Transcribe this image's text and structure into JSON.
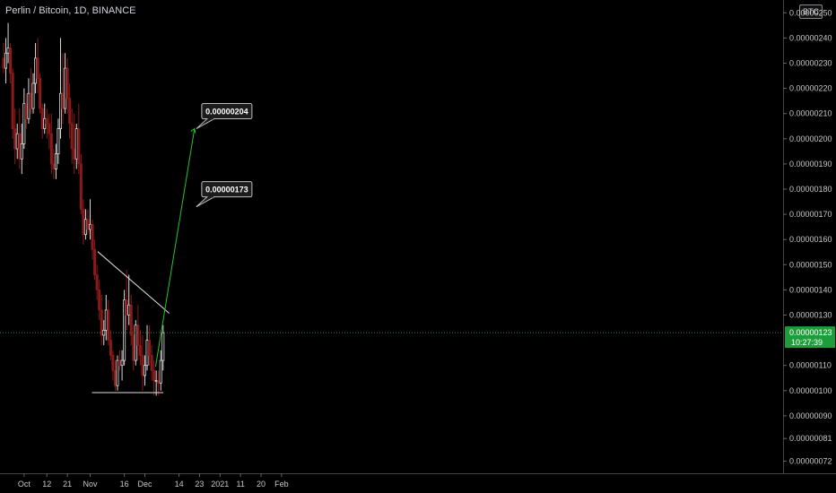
{
  "header": {
    "title": "Perlin / Bitcoin, 1D, BINANCE",
    "currency": "BTC"
  },
  "chart_data": {
    "type": "candlestick",
    "title": "Perlin / Bitcoin, 1D, BINANCE",
    "y_axis": {
      "ylim": [
        7e-07,
        2.5e-06
      ],
      "tick_labels": [
        "0.00000250",
        "0.00000240",
        "0.00000230",
        "0.00000220",
        "0.00000210",
        "0.00000200",
        "0.00000190",
        "0.00000180",
        "0.00000170",
        "0.00000160",
        "0.00000150",
        "0.00000140",
        "0.00000130",
        "0.00000110",
        "0.00000100",
        "0.00000090",
        "0.00000081",
        "0.00000072"
      ],
      "tick_values": [
        250,
        240,
        230,
        220,
        210,
        200,
        190,
        180,
        170,
        160,
        150,
        140,
        130,
        110,
        100,
        90,
        81,
        72
      ]
    },
    "x_axis": {
      "tick_labels": [
        "Oct",
        "12",
        "21",
        "Nov",
        "16",
        "Dec",
        "14",
        "23",
        "2021",
        "11",
        "20",
        "Feb"
      ],
      "tick_day_index": [
        9,
        19,
        28,
        38,
        53,
        62,
        77,
        86,
        95,
        104,
        113,
        122
      ]
    },
    "last_price": {
      "value": "0.00000123",
      "countdown": "10:27:39"
    },
    "annotations": [
      {
        "type": "callout",
        "text": "0.00000204",
        "price": 204
      },
      {
        "type": "callout",
        "text": "0.00000173",
        "price": 173
      }
    ],
    "trendlines": [
      {
        "name": "descending-resistance",
        "from": {
          "day": 41.3,
          "price": 155.2
        },
        "to": {
          "day": 72.7,
          "price": 130.7
        }
      },
      {
        "name": "horizontal-support",
        "from": {
          "day": 38.8,
          "price": 99.2
        },
        "to": {
          "day": 70.1,
          "price": 99.2
        }
      },
      {
        "name": "projection-arrow",
        "from": {
          "day": 66.7,
          "price": 109.5
        },
        "to": {
          "day": 83.8,
          "price": 204
        }
      }
    ],
    "candles": [
      [
        232,
        238,
        226,
        228
      ],
      [
        228,
        240,
        222,
        234
      ],
      [
        234,
        246,
        230,
        236
      ],
      [
        236,
        238,
        222,
        226
      ],
      [
        226,
        228,
        200,
        204
      ],
      [
        204,
        212,
        190,
        196
      ],
      [
        196,
        206,
        192,
        202
      ],
      [
        202,
        212,
        188,
        192
      ],
      [
        192,
        206,
        186,
        198
      ],
      [
        198,
        220,
        196,
        214
      ],
      [
        214,
        218,
        204,
        208
      ],
      [
        208,
        224,
        206,
        218
      ],
      [
        218,
        228,
        210,
        212
      ],
      [
        212,
        226,
        210,
        222
      ],
      [
        222,
        238,
        218,
        232
      ],
      [
        232,
        240,
        218,
        224
      ],
      [
        224,
        226,
        210,
        212
      ],
      [
        212,
        214,
        200,
        204
      ],
      [
        204,
        214,
        202,
        208
      ],
      [
        208,
        212,
        200,
        206
      ],
      [
        206,
        210,
        196,
        202
      ],
      [
        202,
        210,
        186,
        190
      ],
      [
        190,
        196,
        184,
        188
      ],
      [
        188,
        198,
        184,
        194
      ],
      [
        194,
        208,
        190,
        204
      ],
      [
        204,
        240,
        200,
        218
      ],
      [
        218,
        234,
        206,
        212
      ],
      [
        212,
        234,
        210,
        228
      ],
      [
        228,
        232,
        210,
        216
      ],
      [
        216,
        222,
        200,
        206
      ],
      [
        206,
        212,
        190,
        196
      ],
      [
        196,
        210,
        186,
        192
      ],
      [
        192,
        206,
        188,
        204
      ],
      [
        204,
        214,
        186,
        190
      ],
      [
        190,
        194,
        170,
        172
      ],
      [
        172,
        176,
        158,
        162
      ],
      [
        162,
        172,
        160,
        168
      ],
      [
        168,
        172,
        162,
        164
      ],
      [
        164,
        176,
        160,
        166
      ],
      [
        166,
        168,
        152,
        156
      ],
      [
        156,
        160,
        144,
        146
      ],
      [
        146,
        150,
        136,
        140
      ],
      [
        140,
        144,
        128,
        132
      ],
      [
        132,
        138,
        118,
        122
      ],
      [
        122,
        128,
        118,
        124
      ],
      [
        124,
        138,
        120,
        132
      ],
      [
        132,
        136,
        118,
        120
      ],
      [
        120,
        124,
        112,
        114
      ],
      [
        114,
        116,
        104,
        108
      ],
      [
        108,
        112,
        100,
        102
      ],
      [
        102,
        114,
        100,
        112
      ],
      [
        112,
        116,
        108,
        110
      ],
      [
        110,
        116,
        104,
        112
      ],
      [
        112,
        140,
        110,
        136
      ],
      [
        136,
        148,
        124,
        130
      ],
      [
        130,
        146,
        126,
        134
      ],
      [
        134,
        138,
        118,
        122
      ],
      [
        122,
        126,
        108,
        112
      ],
      [
        112,
        128,
        110,
        126
      ],
      [
        126,
        134,
        112,
        118
      ],
      [
        118,
        124,
        110,
        114
      ],
      [
        114,
        122,
        100,
        106
      ],
      [
        106,
        114,
        102,
        110
      ],
      [
        110,
        126,
        108,
        120
      ],
      [
        120,
        126,
        110,
        114
      ],
      [
        114,
        118,
        104,
        108
      ],
      [
        108,
        112,
        98,
        104
      ],
      [
        104,
        108,
        98,
        104
      ],
      [
        104,
        108,
        98,
        103
      ],
      [
        103,
        116,
        100,
        112
      ],
      [
        112,
        126,
        108,
        123
      ]
    ]
  }
}
